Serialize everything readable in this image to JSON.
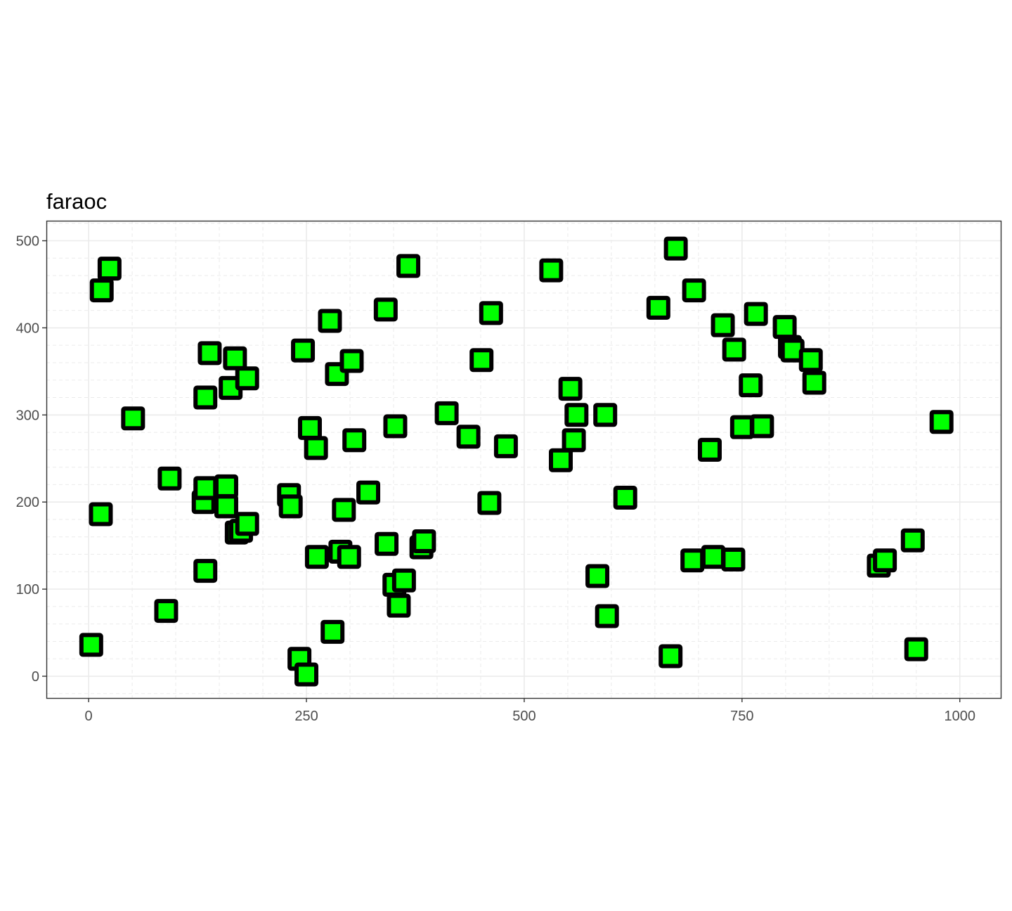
{
  "chart_data": {
    "type": "scatter",
    "title": "faraoc",
    "xlabel": "",
    "ylabel": "",
    "xlim": [
      -48.5,
      1047
    ],
    "ylim": [
      -25,
      523
    ],
    "x_ticks": [
      0,
      250,
      500,
      750,
      1000
    ],
    "x_tick_labels": [
      "0",
      "250",
      "500",
      "750",
      "1000"
    ],
    "y_ticks": [
      0,
      100,
      200,
      300,
      400,
      500
    ],
    "y_tick_labels": [
      "0",
      "100",
      "200",
      "300",
      "400",
      "500"
    ],
    "grid": true,
    "marker": "square",
    "colors": {
      "fill": "#00ff00",
      "stroke": "#000000",
      "grid": "#ebebeb",
      "axis_text": "#4d4d4d"
    },
    "points": [
      [
        3,
        36
      ],
      [
        15,
        443
      ],
      [
        24,
        468
      ],
      [
        14,
        186
      ],
      [
        51,
        296
      ],
      [
        89,
        75
      ],
      [
        93,
        227
      ],
      [
        134,
        121
      ],
      [
        132,
        200
      ],
      [
        134,
        216
      ],
      [
        134,
        320
      ],
      [
        139,
        371
      ],
      [
        158,
        218
      ],
      [
        158,
        195
      ],
      [
        163,
        331
      ],
      [
        168,
        365
      ],
      [
        170,
        165
      ],
      [
        175,
        167
      ],
      [
        182,
        175
      ],
      [
        182,
        342
      ],
      [
        230,
        208
      ],
      [
        232,
        195
      ],
      [
        246,
        374
      ],
      [
        242,
        20
      ],
      [
        250,
        2
      ],
      [
        254,
        285
      ],
      [
        261,
        262
      ],
      [
        262,
        137
      ],
      [
        277,
        408
      ],
      [
        280,
        51
      ],
      [
        285,
        347
      ],
      [
        289,
        143
      ],
      [
        293,
        191
      ],
      [
        299,
        137
      ],
      [
        302,
        362
      ],
      [
        305,
        271
      ],
      [
        321,
        211
      ],
      [
        342,
        152
      ],
      [
        341,
        421
      ],
      [
        352,
        287
      ],
      [
        351,
        105
      ],
      [
        356,
        81
      ],
      [
        362,
        110
      ],
      [
        367,
        471
      ],
      [
        382,
        148
      ],
      [
        385,
        155
      ],
      [
        411,
        302
      ],
      [
        436,
        275
      ],
      [
        451,
        363
      ],
      [
        462,
        417
      ],
      [
        460,
        199
      ],
      [
        479,
        264
      ],
      [
        531,
        466
      ],
      [
        542,
        248
      ],
      [
        553,
        330
      ],
      [
        557,
        271
      ],
      [
        560,
        300
      ],
      [
        584,
        115
      ],
      [
        593,
        300
      ],
      [
        595,
        69
      ],
      [
        616,
        205
      ],
      [
        654,
        423
      ],
      [
        668,
        23
      ],
      [
        674,
        491
      ],
      [
        695,
        443
      ],
      [
        693,
        133
      ],
      [
        713,
        260
      ],
      [
        717,
        137
      ],
      [
        728,
        403
      ],
      [
        740,
        134
      ],
      [
        741,
        375
      ],
      [
        760,
        334
      ],
      [
        750,
        286
      ],
      [
        766,
        416
      ],
      [
        773,
        287
      ],
      [
        799,
        401
      ],
      [
        805,
        378
      ],
      [
        808,
        374
      ],
      [
        829,
        363
      ],
      [
        833,
        337
      ],
      [
        907,
        127
      ],
      [
        914,
        133
      ],
      [
        946,
        156
      ],
      [
        950,
        31
      ],
      [
        979,
        292
      ]
    ]
  }
}
